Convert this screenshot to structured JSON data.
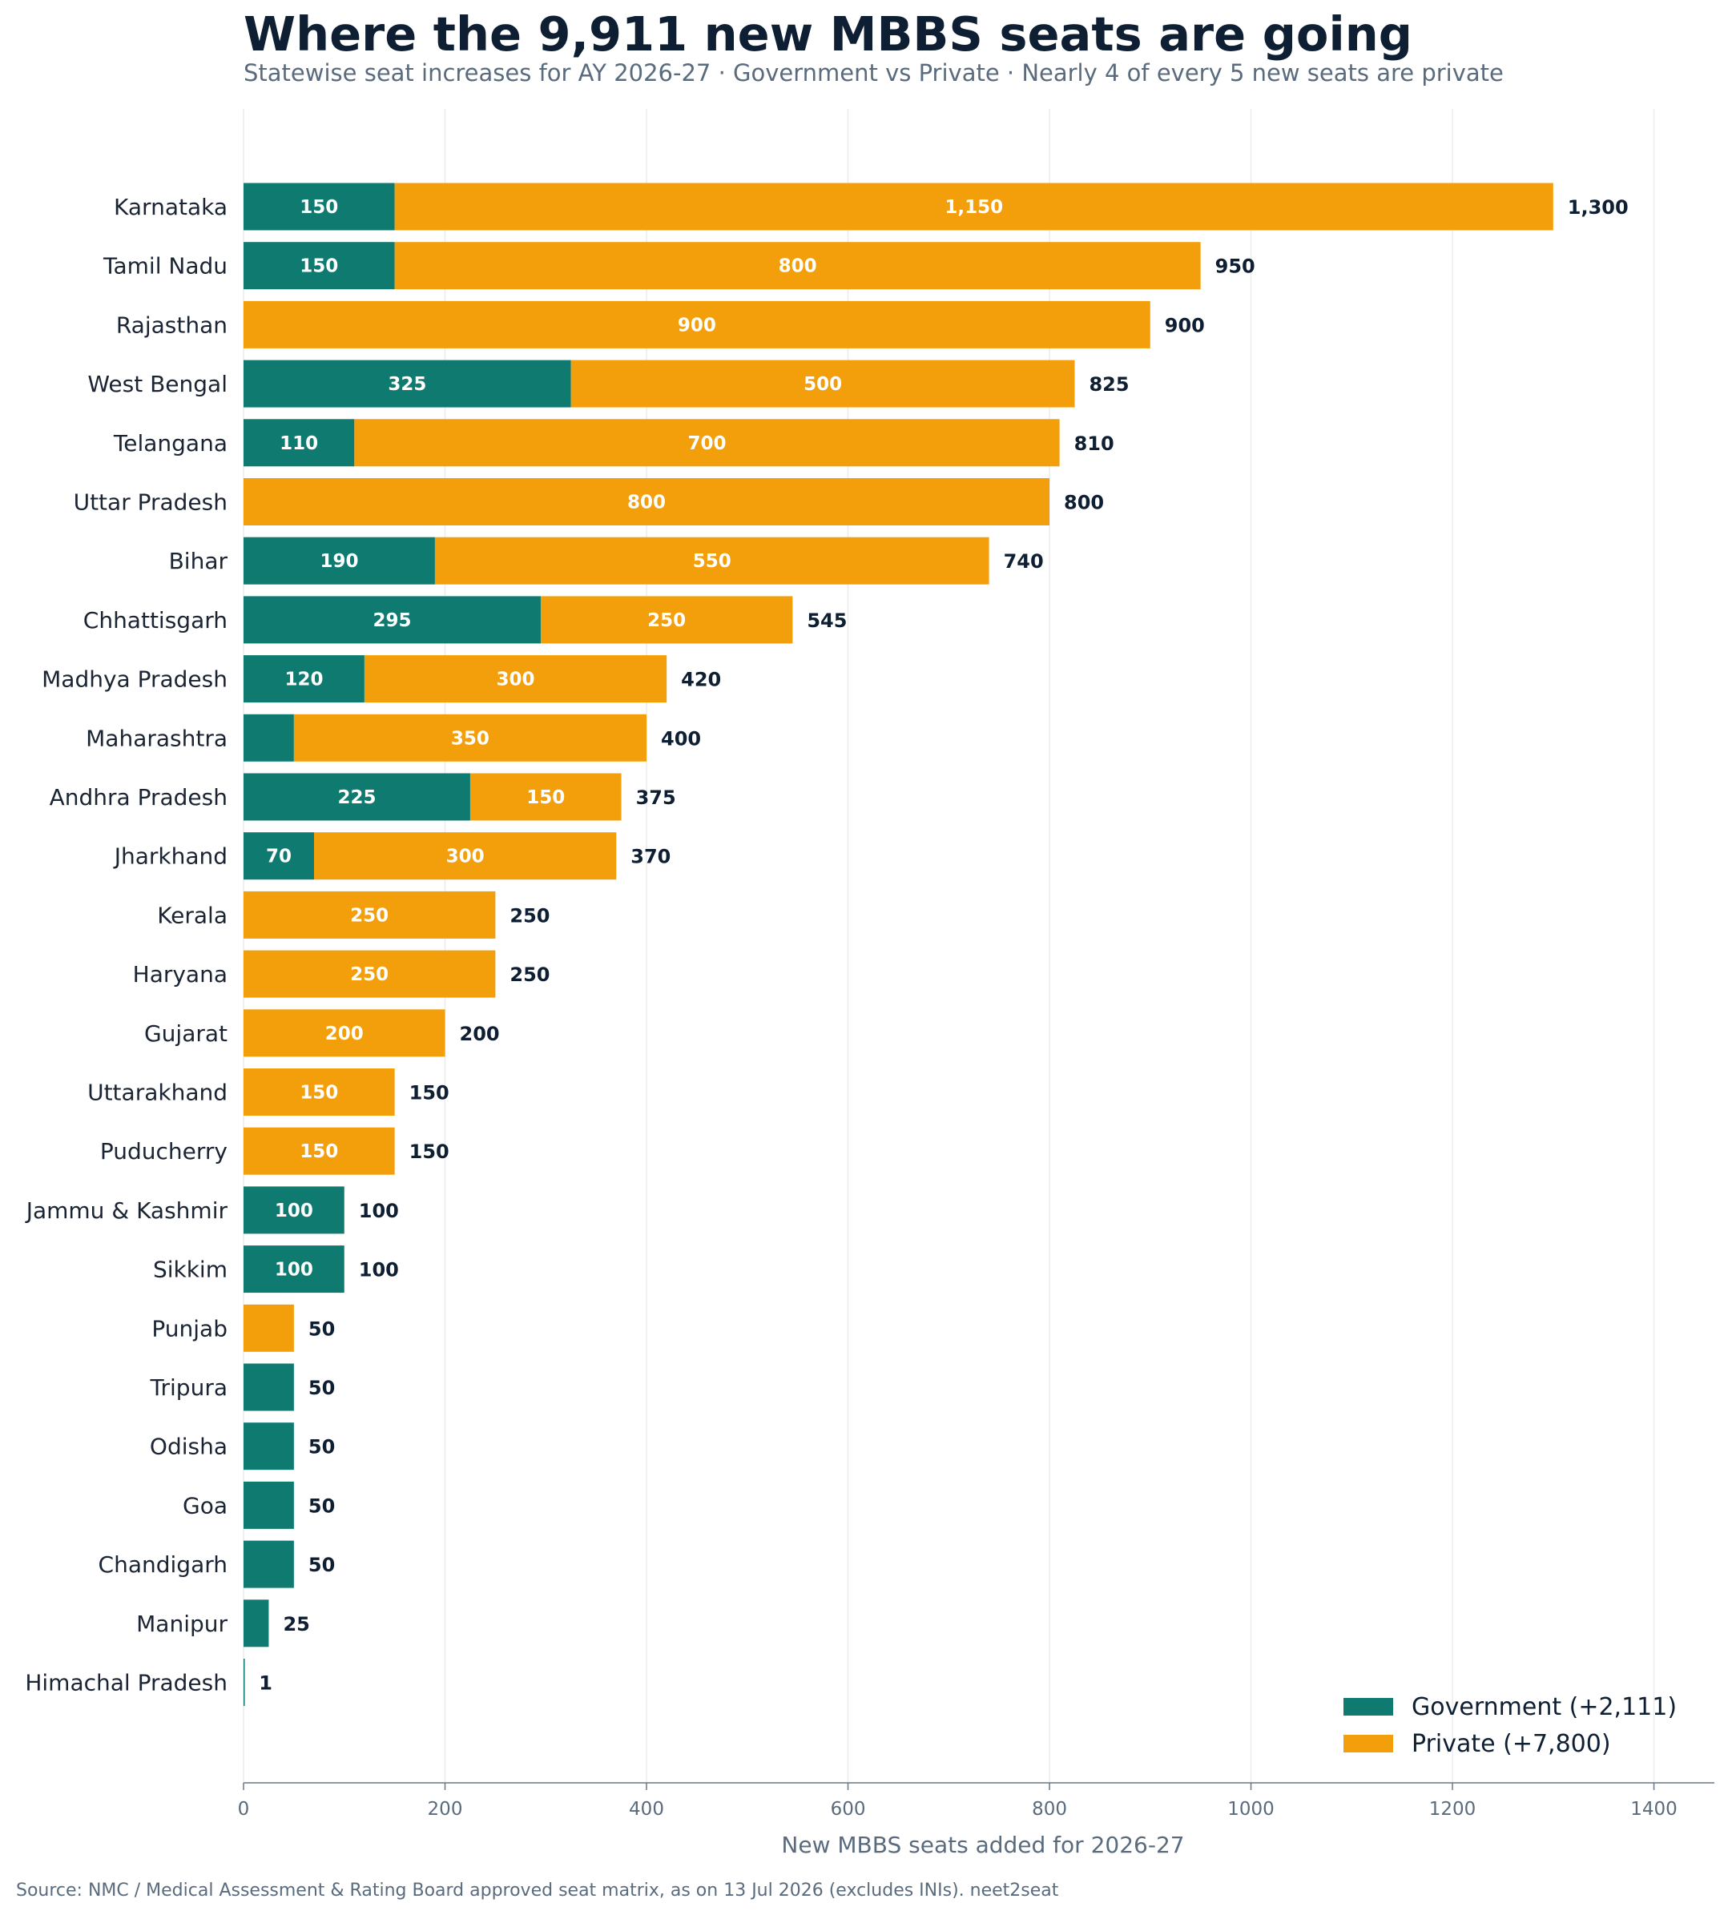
{
  "header": {
    "title": "Where the 9,911 new MBBS seats are going",
    "subtitle": "Statewise seat increases for AY 2026-27  ·  Government vs Private  ·  Nearly 4 of every 5 new seats are private"
  },
  "footer": {
    "source": "Source: NMC / Medical Assessment & Rating Board approved seat matrix, as on 13 Jul 2026 (excludes INIs).  neet2seat"
  },
  "colors": {
    "government": "#0e7a70",
    "private": "#f39f0b"
  },
  "chart_data": {
    "type": "bar",
    "orientation": "horizontal",
    "stacked": true,
    "xlabel": "New MBBS seats added for 2026-27",
    "ylabel": "",
    "xlim": [
      0,
      1460
    ],
    "xticks": [
      0,
      200,
      400,
      600,
      800,
      1000,
      1200,
      1400
    ],
    "grid": "vertical",
    "legend_position": "bottom-right",
    "categories": [
      "Karnataka",
      "Tamil Nadu",
      "Rajasthan",
      "West Bengal",
      "Telangana",
      "Uttar Pradesh",
      "Bihar",
      "Chhattisgarh",
      "Madhya Pradesh",
      "Maharashtra",
      "Andhra Pradesh",
      "Jharkhand",
      "Kerala",
      "Haryana",
      "Gujarat",
      "Uttarakhand",
      "Puducherry",
      "Jammu & Kashmir",
      "Sikkim",
      "Punjab",
      "Tripura",
      "Odisha",
      "Goa",
      "Chandigarh",
      "Manipur",
      "Himachal Pradesh"
    ],
    "series": [
      {
        "name": "Government",
        "legend_label": "Government  (+2,111)",
        "values": [
          150,
          150,
          0,
          325,
          110,
          0,
          190,
          295,
          120,
          50,
          225,
          70,
          0,
          0,
          0,
          0,
          0,
          100,
          100,
          0,
          50,
          50,
          50,
          50,
          25,
          1
        ]
      },
      {
        "name": "Private",
        "legend_label": "Private  (+7,800)",
        "values": [
          1150,
          800,
          900,
          500,
          700,
          800,
          550,
          250,
          300,
          350,
          150,
          300,
          250,
          250,
          200,
          150,
          150,
          0,
          0,
          50,
          0,
          0,
          0,
          0,
          0,
          0
        ]
      }
    ],
    "totals": [
      "1,300",
      "950",
      "900",
      "825",
      "810",
      "800",
      "740",
      "545",
      "420",
      "400",
      "375",
      "370",
      "250",
      "250",
      "200",
      "150",
      "150",
      "100",
      "100",
      "50",
      "50",
      "50",
      "50",
      "50",
      "25",
      "1"
    ],
    "segment_labels": {
      "government": [
        "150",
        "150",
        "",
        "325",
        "110",
        "",
        "190",
        "295",
        "120",
        "",
        "225",
        "70",
        "",
        "",
        "",
        "",
        "",
        "100",
        "100",
        "",
        "",
        "",
        "",
        "",
        "",
        ""
      ],
      "private": [
        "1,150",
        "800",
        "900",
        "500",
        "700",
        "800",
        "550",
        "250",
        "300",
        "350",
        "150",
        "300",
        "250",
        "250",
        "200",
        "150",
        "150",
        "",
        "",
        "",
        "",
        "",
        "",
        "",
        "",
        ""
      ]
    }
  }
}
